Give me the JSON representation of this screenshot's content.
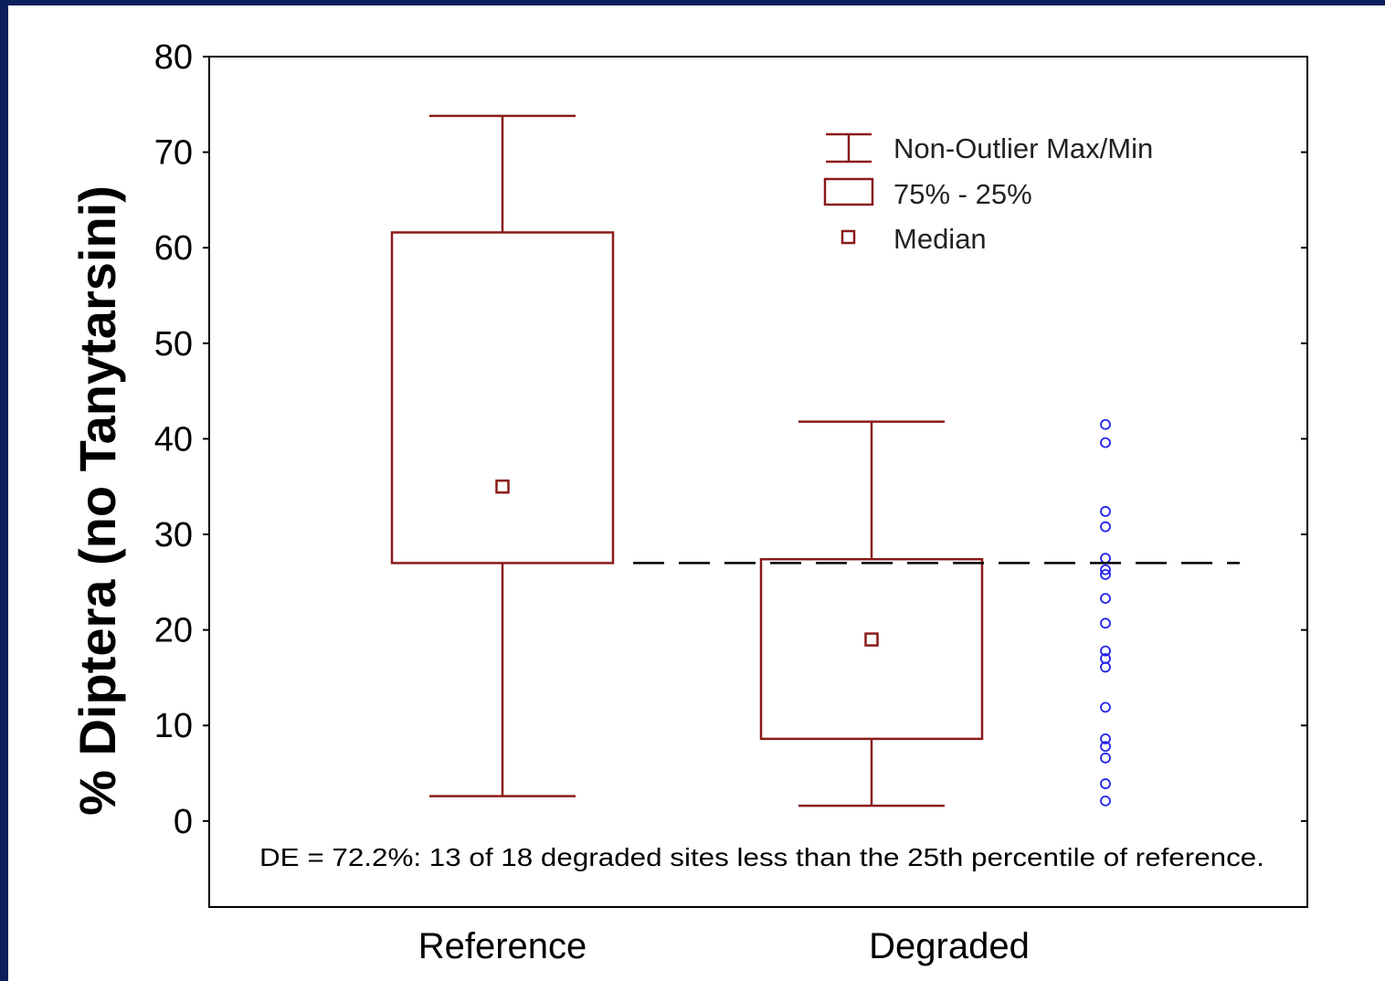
{
  "chart_data": {
    "type": "box",
    "ylabel": "% Diptera (no Tanytarsini)",
    "ylim": [
      -9,
      80
    ],
    "yticks": [
      0,
      10,
      20,
      30,
      40,
      50,
      60,
      70,
      80
    ],
    "categories": [
      "Reference",
      "Degraded"
    ],
    "boxes": [
      {
        "category": "Reference",
        "min": 2.6,
        "q1": 27.0,
        "median": 35.0,
        "q3": 61.6,
        "max": 73.8
      },
      {
        "category": "Degraded",
        "min": 1.6,
        "q1": 8.6,
        "median": 19.0,
        "q3": 27.4,
        "max": 41.8
      }
    ],
    "reference_line": {
      "y": 27.0,
      "style": "dashed",
      "meaning": "25th percentile of reference"
    },
    "degraded_points": [
      41.5,
      39.6,
      32.4,
      30.8,
      27.5,
      26.3,
      25.8,
      23.3,
      20.7,
      17.8,
      17.0,
      16.1,
      11.9,
      8.6,
      7.8,
      6.6,
      3.9,
      2.1
    ],
    "legend": {
      "placement": "top-right",
      "entries": [
        "Non-Outlier Max/Min",
        "75% - 25%",
        "Median"
      ]
    },
    "annotation": "DE = 72.2%:  13 of 18 degraded sites less than the 25th percentile of reference.",
    "colors": {
      "box": "#8b1a1a",
      "points": "#2222ee",
      "reference_line": "#000000",
      "background_frame": "#0b1f5c"
    }
  }
}
